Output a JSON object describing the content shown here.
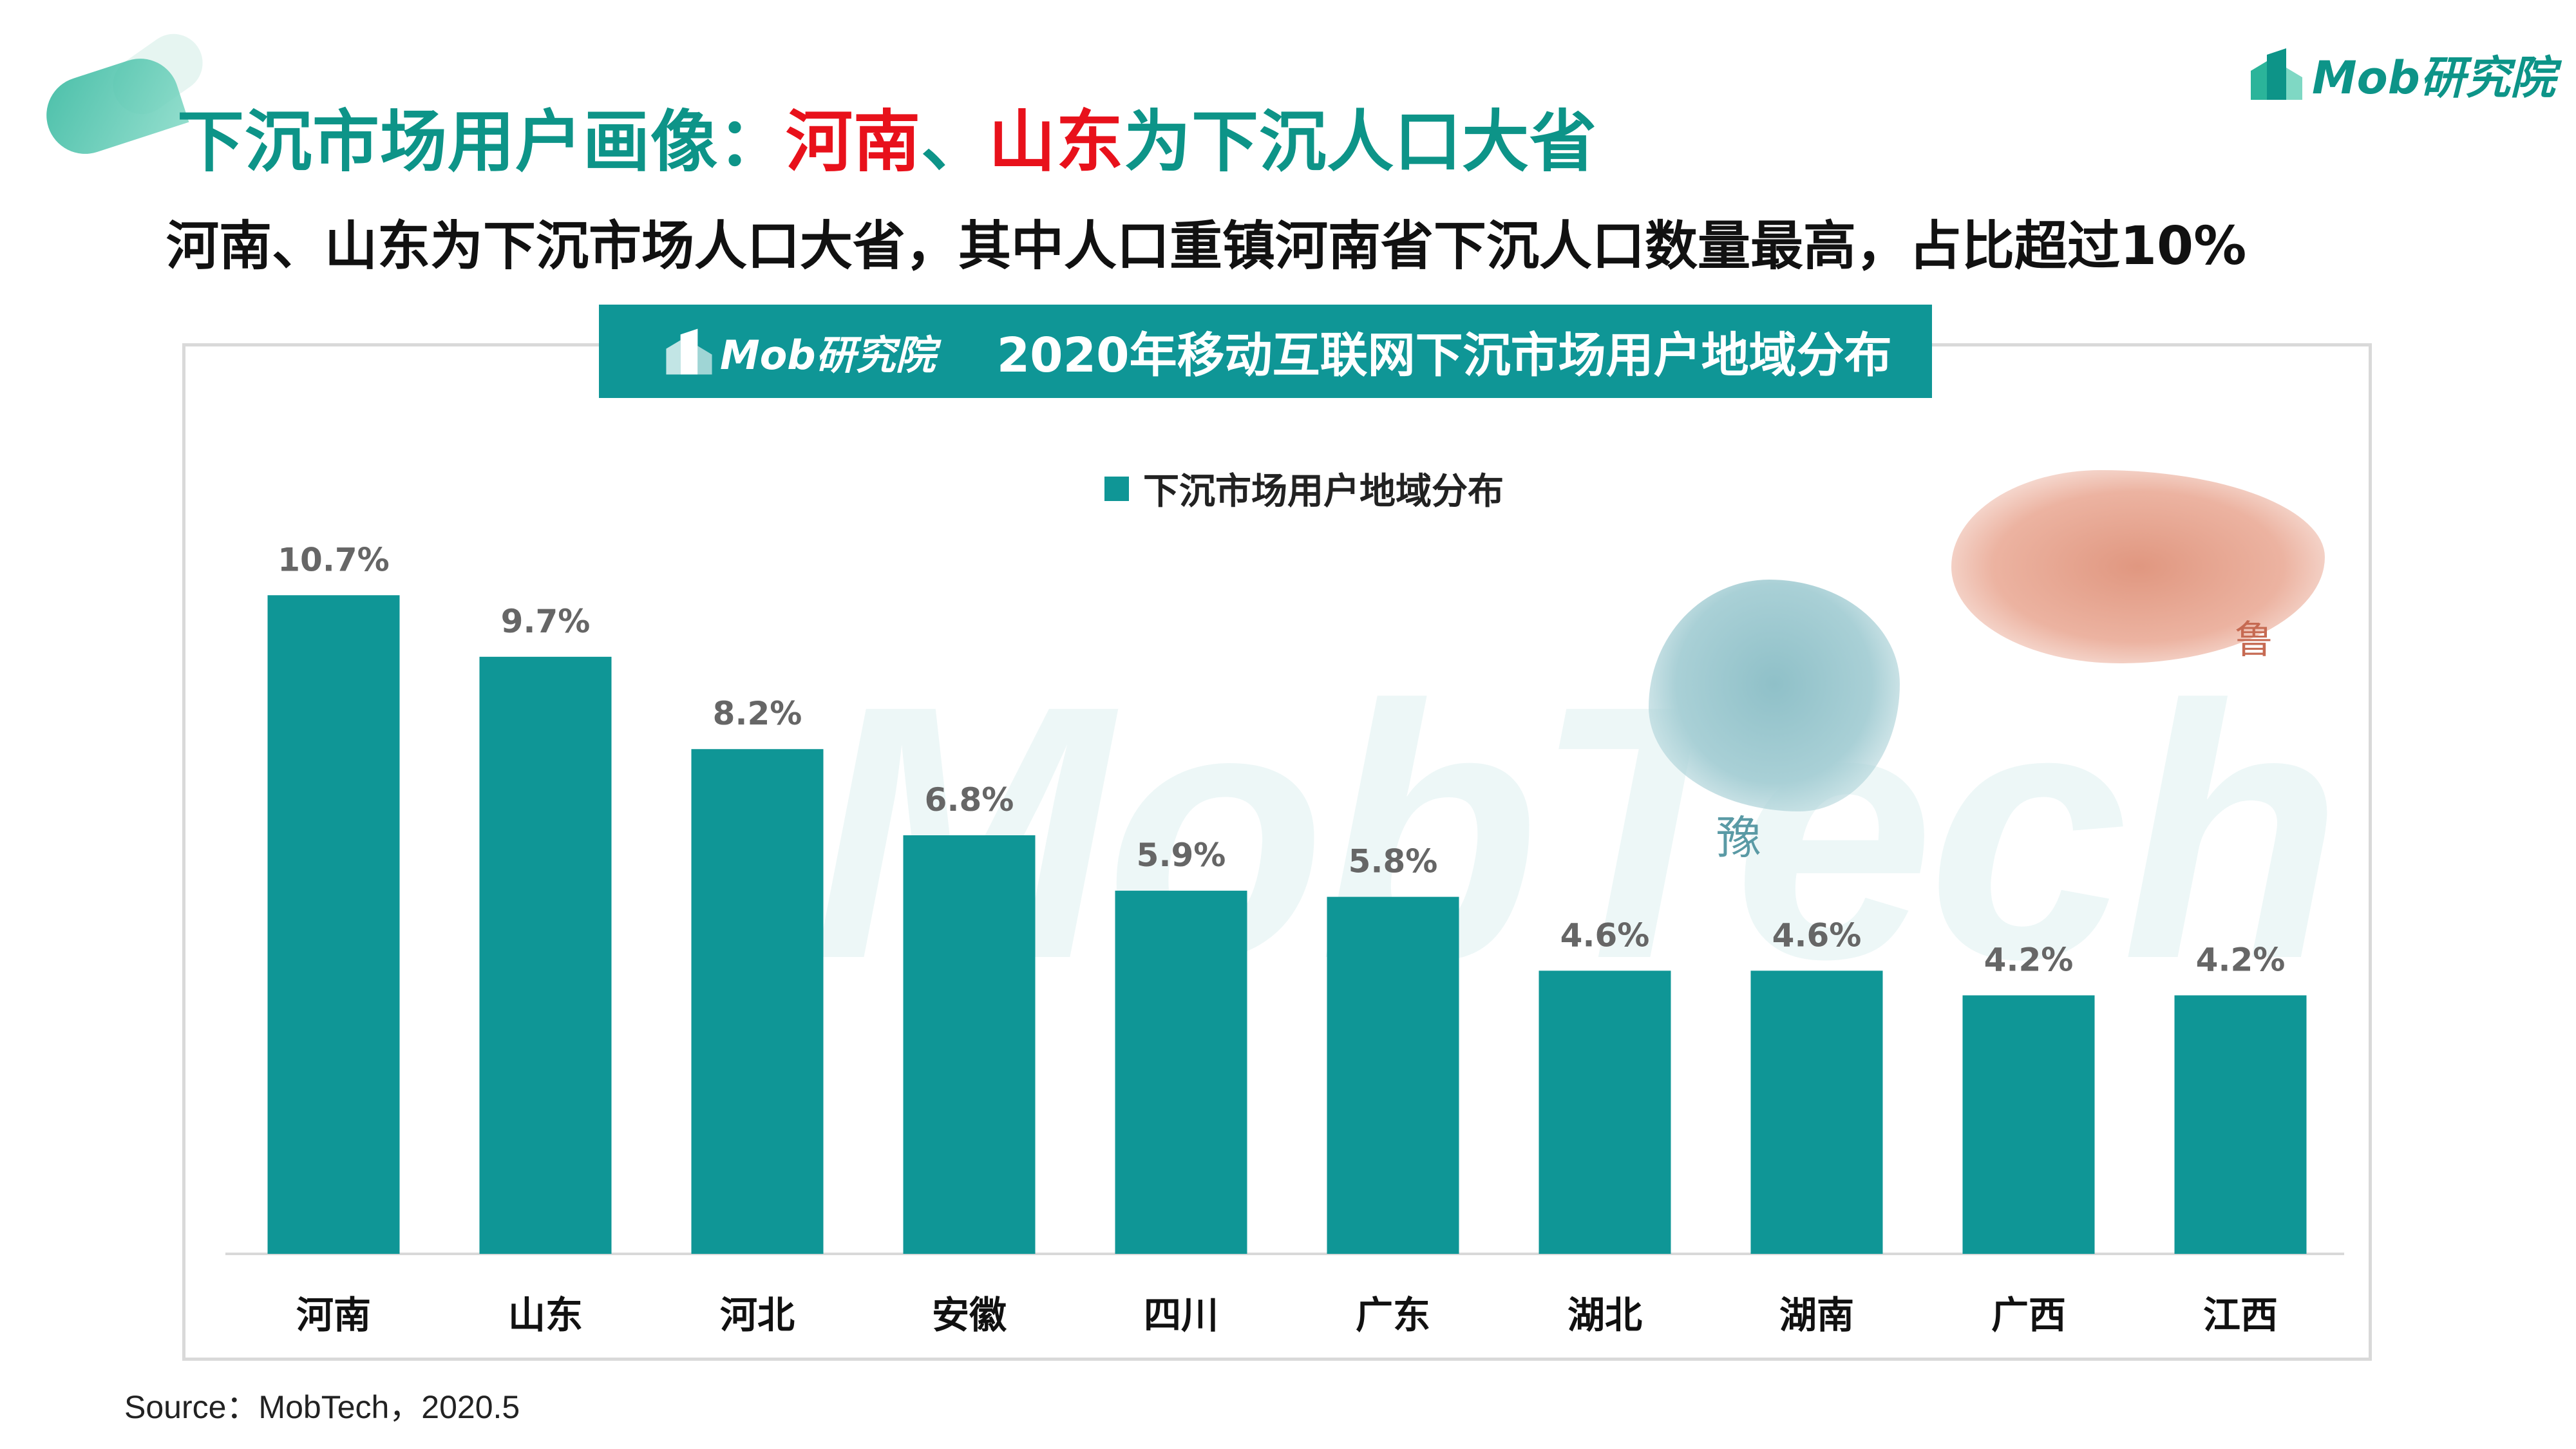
{
  "header": {
    "title_prefix": "下沉市场用户画像：",
    "title_highlight_1": "河南",
    "title_sep": "、",
    "title_highlight_2": "山东",
    "title_suffix": "为下沉人口大省",
    "subtitle": "河南、山东为下沉市场人口大省，其中人口重镇河南省下沉人口数量最高，占比超过10%"
  },
  "brand": {
    "name": "Mob研究院",
    "watermark": "MobTech",
    "icon": "building-icon"
  },
  "map_chars": {
    "henan": "豫",
    "shandong": "鲁"
  },
  "colors": {
    "accent": "#0f9696",
    "highlight": "#e8111b",
    "title_color": "#0d9488"
  },
  "chart_data": {
    "type": "bar",
    "title": "2020年移动互联网下沉市场用户地域分布",
    "legend": [
      "下沉市场用户地域分布"
    ],
    "legend_position": "top-center",
    "categories": [
      "河南",
      "山东",
      "河北",
      "安徽",
      "四川",
      "广东",
      "湖北",
      "湖南",
      "广西",
      "江西"
    ],
    "series": [
      {
        "name": "下沉市场用户地域分布",
        "values": [
          10.7,
          9.7,
          8.2,
          6.8,
          5.9,
          5.8,
          4.6,
          4.6,
          4.2,
          4.2
        ],
        "labels": [
          "10.7%",
          "9.7%",
          "8.2%",
          "6.8%",
          "5.9%",
          "5.8%",
          "4.6%",
          "4.6%",
          "4.2%",
          "4.2%"
        ]
      }
    ],
    "ylim": [
      0,
      12
    ],
    "grid": false,
    "color": "#0f9696"
  },
  "source": "Source：MobTech，2020.5"
}
